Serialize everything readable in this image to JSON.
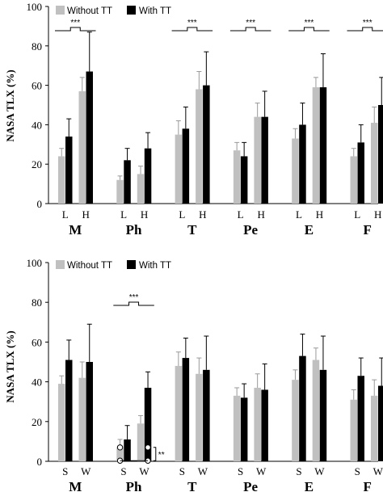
{
  "chart_data": [
    {
      "type": "bar",
      "ylabel": "NASA TLX (%)",
      "ylim": [
        0,
        100
      ],
      "yticks": [
        0,
        20,
        40,
        60,
        80,
        100
      ],
      "groups": [
        "M",
        "Ph",
        "T",
        "Pe",
        "E",
        "F"
      ],
      "conditions": [
        "L",
        "H"
      ],
      "series": [
        {
          "name": "Without TT",
          "color": "#c0c0c0",
          "values": [
            [
              24,
              57
            ],
            [
              12,
              15
            ],
            [
              35,
              58
            ],
            [
              27,
              44
            ],
            [
              33,
              59
            ],
            [
              24,
              41
            ]
          ],
          "errors": [
            [
              4,
              7
            ],
            [
              2,
              4
            ],
            [
              7,
              9
            ],
            [
              4,
              7
            ],
            [
              5,
              5
            ],
            [
              4,
              8
            ]
          ]
        },
        {
          "name": "With TT",
          "color": "#000000",
          "values": [
            [
              34,
              67
            ],
            [
              22,
              28
            ],
            [
              38,
              60
            ],
            [
              24,
              44
            ],
            [
              40,
              59
            ],
            [
              31,
              50
            ]
          ],
          "errors": [
            [
              9,
              20
            ],
            [
              6,
              8
            ],
            [
              11,
              17
            ],
            [
              7,
              13
            ],
            [
              11,
              17
            ],
            [
              9,
              14
            ]
          ]
        }
      ],
      "legend_position": "top-left",
      "significance": [
        {
          "group": "M",
          "label": "***"
        },
        {
          "group": "T",
          "label": "***"
        },
        {
          "group": "Pe",
          "label": "***"
        },
        {
          "group": "E",
          "label": "***"
        },
        {
          "group": "F",
          "label": "***"
        }
      ]
    },
    {
      "type": "bar",
      "ylabel": "NASA TLX (%)",
      "ylim": [
        0,
        100
      ],
      "yticks": [
        0,
        20,
        40,
        60,
        80,
        100
      ],
      "groups": [
        "M",
        "Ph",
        "T",
        "Pe",
        "E",
        "F"
      ],
      "conditions": [
        "S",
        "W"
      ],
      "series": [
        {
          "name": "Without TT",
          "color": "#c0c0c0",
          "values": [
            [
              39,
              42
            ],
            [
              7,
              19
            ],
            [
              48,
              44
            ],
            [
              33,
              37
            ],
            [
              41,
              51
            ],
            [
              31,
              33
            ]
          ],
          "errors": [
            [
              4,
              8
            ],
            [
              4,
              4
            ],
            [
              7,
              8
            ],
            [
              4,
              7
            ],
            [
              5,
              6
            ],
            [
              5,
              8
            ]
          ]
        },
        {
          "name": "With TT",
          "color": "#000000",
          "values": [
            [
              51,
              50
            ],
            [
              11,
              37
            ],
            [
              52,
              46
            ],
            [
              32,
              36
            ],
            [
              53,
              46
            ],
            [
              43,
              38
            ]
          ],
          "errors": [
            [
              10,
              19
            ],
            [
              7,
              8
            ],
            [
              10,
              17
            ],
            [
              7,
              13
            ],
            [
              11,
              17
            ],
            [
              9,
              14
            ]
          ]
        }
      ],
      "legend_position": "top-left",
      "significance": [
        {
          "group": "Ph",
          "label": "***"
        },
        {
          "group": "Ph",
          "label": "**"
        }
      ]
    }
  ],
  "legend": {
    "without": "Without TT",
    "with": "With TT"
  }
}
